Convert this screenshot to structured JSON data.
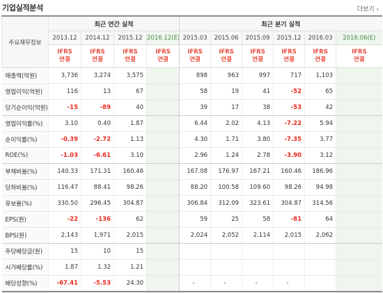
{
  "header": {
    "title": "기업실적분석",
    "more_label": "더보기 ›"
  },
  "table": {
    "row_header": "주요재무정보",
    "group_annual": "최근 연간 실적",
    "group_quarter": "최근 분기 실적",
    "annual_years": [
      "2013.12",
      "2014.12",
      "2015.12",
      "2016.12(E)"
    ],
    "quarter_years": [
      "2015.03",
      "2015.06",
      "2015.09",
      "2015.12",
      "2016.03",
      "2016.06(E)"
    ],
    "ifrs_line1": "IFRS",
    "ifrs_line2": "연결",
    "rows": [
      {
        "label": "매출액(억원)",
        "values": [
          "3,736",
          "3,274",
          "3,575",
          "",
          "898",
          "963",
          "997",
          "717",
          "1,103",
          ""
        ]
      },
      {
        "label": "영업이익(억원)",
        "values": [
          "116",
          "13",
          "67",
          "",
          "58",
          "19",
          "41",
          "-52",
          "65",
          ""
        ]
      },
      {
        "label": "당기순이익(억원)",
        "values": [
          "-15",
          "-89",
          "40",
          "",
          "39",
          "17",
          "38",
          "-53",
          "42",
          ""
        ]
      },
      {
        "label": "영업이익률(%)",
        "values": [
          "3.10",
          "0.40",
          "1.87",
          "",
          "6.44",
          "2.02",
          "4.13",
          "-7.22",
          "5.94",
          ""
        ]
      },
      {
        "label": "순이익률(%)",
        "values": [
          "-0.39",
          "-2.72",
          "1.13",
          "",
          "4.30",
          "1.71",
          "3.80",
          "-7.35",
          "3.77",
          ""
        ]
      },
      {
        "label": "ROE(%)",
        "values": [
          "-1.03",
          "-6.61",
          "3.10",
          "",
          "2.96",
          "1.24",
          "2.78",
          "-3.90",
          "3.12",
          ""
        ]
      },
      {
        "label": "부채비율(%)",
        "values": [
          "140.33",
          "171.31",
          "160.46",
          "",
          "167.08",
          "176.97",
          "167.21",
          "160.46",
          "186.96",
          ""
        ]
      },
      {
        "label": "당좌비율(%)",
        "values": [
          "116.47",
          "88.41",
          "98.26",
          "",
          "88.20",
          "100.58",
          "109.60",
          "98.26",
          "94.98",
          ""
        ]
      },
      {
        "label": "유보율(%)",
        "values": [
          "330.50",
          "296.45",
          "304.87",
          "",
          "306.84",
          "312.09",
          "323.61",
          "304.87",
          "314.56",
          ""
        ]
      },
      {
        "label": "EPS(원)",
        "values": [
          "-22",
          "-136",
          "62",
          "",
          "59",
          "25",
          "58",
          "-81",
          "64",
          ""
        ]
      },
      {
        "label": "BPS(원)",
        "values": [
          "2,143",
          "1,971",
          "2,015",
          "",
          "2,024",
          "2,052",
          "2,114",
          "2,015",
          "2,062",
          ""
        ]
      },
      {
        "label": "주당배당금(원)",
        "values": [
          "15",
          "10",
          "15",
          "",
          "",
          "",
          "",
          "",
          "",
          ""
        ]
      },
      {
        "label": "시가배당률(%)",
        "values": [
          "1.87",
          "1.32",
          "1.21",
          "",
          "",
          "",
          "",
          "",
          "",
          ""
        ]
      },
      {
        "label": "배당성향(%)",
        "values": [
          "-67.41",
          "-5.53",
          "24.30",
          "",
          "-",
          "-",
          "-",
          "-",
          "",
          ""
        ]
      }
    ]
  },
  "colors": {
    "negative": "#e8281e",
    "ifrs": "#e84c3d",
    "estimate_bg": "#eef6ee"
  }
}
